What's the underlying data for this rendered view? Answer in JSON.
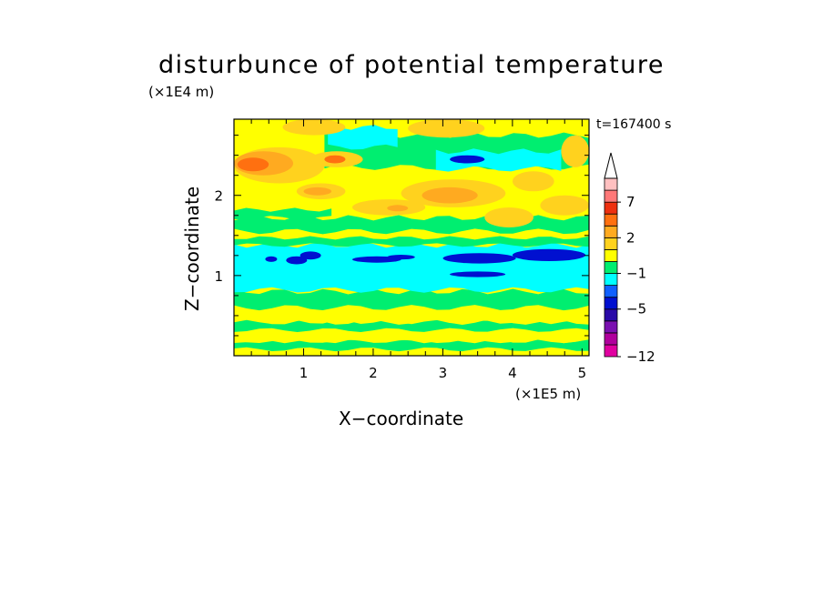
{
  "chart_data": {
    "type": "heatmap",
    "title": "disturbunce of potential temperature",
    "xlabel": "X−coordinate",
    "ylabel": "Z−coordinate",
    "x_unit": "(×1E5 m)",
    "y_unit": "(×1E4 m)",
    "time_label": "t=167400 s",
    "xlim": [
      0,
      5.1
    ],
    "ylim": [
      0,
      2.95
    ],
    "x_ticks": [
      1,
      2,
      3,
      4,
      5
    ],
    "y_ticks": [
      1,
      2
    ],
    "colorbar": {
      "labels": [
        "7",
        "2",
        "−1",
        "−5",
        "−12"
      ],
      "label_values": [
        7,
        2,
        -1,
        -5,
        -12
      ],
      "bounds": [
        -12,
        -10,
        -8,
        -6,
        -5,
        -4,
        -3,
        -1,
        0,
        1,
        2,
        3,
        5,
        7,
        9,
        11
      ],
      "colors": [
        "#e000a0",
        "#b0009c",
        "#7a10b0",
        "#2a0aa8",
        "#0010d0",
        "#1060ff",
        "#00ffff",
        "#00ee70",
        "#ffff00",
        "#ffd21e",
        "#ffaa20",
        "#ff7010",
        "#ee3010",
        "#ff7878",
        "#ffc0c0"
      ],
      "extend_top": true,
      "extend_top_color": "#ffffff"
    },
    "background_color": "#ffff00",
    "field_regions": [
      {
        "level": 0.5,
        "shape": "band",
        "x": [
          0,
          5.1
        ],
        "y": [
          0,
          0.07
        ]
      },
      {
        "level": -0.5,
        "shape": "band",
        "x": [
          0,
          5.1
        ],
        "y": [
          0.08,
          0.18
        ]
      },
      {
        "level": 0.5,
        "shape": "band",
        "x": [
          0,
          5.1
        ],
        "y": [
          0.18,
          0.27
        ]
      },
      {
        "level": -0.5,
        "shape": "band",
        "x": [
          0,
          5.1
        ],
        "y": [
          0.32,
          0.42
        ]
      },
      {
        "level": 0.5,
        "shape": "band",
        "x": [
          0,
          5.1
        ],
        "y": [
          0.42,
          0.58
        ]
      },
      {
        "level": -0.5,
        "shape": "band",
        "x": [
          0,
          5.1
        ],
        "y": [
          0.6,
          0.8
        ]
      },
      {
        "level": -2,
        "shape": "band",
        "x": [
          0,
          5.1
        ],
        "y": [
          0.82,
          1.38
        ]
      },
      {
        "level": -0.5,
        "shape": "band",
        "x": [
          0,
          5.1
        ],
        "y": [
          1.38,
          1.47
        ]
      },
      {
        "level": -0.5,
        "shape": "band",
        "x": [
          0,
          5.1
        ],
        "y": [
          1.55,
          1.72
        ]
      },
      {
        "level": -0.5,
        "shape": "band",
        "x": [
          0,
          1.4
        ],
        "y": [
          1.72,
          1.82
        ]
      },
      {
        "level": -0.5,
        "shape": "band",
        "x": [
          1.3,
          5.1
        ],
        "y": [
          2.35,
          2.75
        ]
      },
      {
        "level": -2,
        "shape": "band",
        "x": [
          1.35,
          2.35
        ],
        "y": [
          2.6,
          2.85
        ]
      },
      {
        "level": -2,
        "shape": "band",
        "x": [
          2.9,
          4.7
        ],
        "y": [
          2.33,
          2.55
        ]
      },
      {
        "level": 1.5,
        "shape": "blob",
        "x": [
          0,
          1.3
        ],
        "y": [
          2.15,
          2.6
        ]
      },
      {
        "level": 2.5,
        "shape": "blob",
        "x": [
          0,
          0.85
        ],
        "y": [
          2.25,
          2.55
        ]
      },
      {
        "level": 4,
        "shape": "blob",
        "x": [
          0.05,
          0.5
        ],
        "y": [
          2.3,
          2.47
        ]
      },
      {
        "level": 1.5,
        "shape": "blob",
        "x": [
          1.1,
          1.85
        ],
        "y": [
          2.35,
          2.55
        ]
      },
      {
        "level": 4,
        "shape": "blob",
        "x": [
          1.3,
          1.6
        ],
        "y": [
          2.4,
          2.5
        ]
      },
      {
        "level": 1.5,
        "shape": "blob",
        "x": [
          0.9,
          1.6
        ],
        "y": [
          1.95,
          2.15
        ]
      },
      {
        "level": 2.5,
        "shape": "blob",
        "x": [
          1.0,
          1.4
        ],
        "y": [
          2.0,
          2.1
        ]
      },
      {
        "level": 1.5,
        "shape": "blob",
        "x": [
          1.7,
          2.75
        ],
        "y": [
          1.75,
          1.95
        ]
      },
      {
        "level": 2.5,
        "shape": "blob",
        "x": [
          2.2,
          2.5
        ],
        "y": [
          1.8,
          1.88
        ]
      },
      {
        "level": 1.5,
        "shape": "blob",
        "x": [
          2.4,
          3.9
        ],
        "y": [
          1.85,
          2.2
        ]
      },
      {
        "level": 2.5,
        "shape": "blob",
        "x": [
          2.7,
          3.5
        ],
        "y": [
          1.9,
          2.1
        ]
      },
      {
        "level": 1.5,
        "shape": "blob",
        "x": [
          3.6,
          4.3
        ],
        "y": [
          1.6,
          1.85
        ]
      },
      {
        "level": 1.5,
        "shape": "blob",
        "x": [
          4.4,
          5.1
        ],
        "y": [
          1.75,
          2.0
        ]
      },
      {
        "level": 1.5,
        "shape": "blob",
        "x": [
          0.7,
          1.6
        ],
        "y": [
          2.75,
          2.95
        ]
      },
      {
        "level": 1.5,
        "shape": "blob",
        "x": [
          2.5,
          3.6
        ],
        "y": [
          2.72,
          2.95
        ]
      },
      {
        "level": 1.5,
        "shape": "blob",
        "x": [
          4.7,
          5.1
        ],
        "y": [
          2.35,
          2.75
        ]
      },
      {
        "level": 1.5,
        "shape": "blob",
        "x": [
          4.0,
          4.6
        ],
        "y": [
          2.05,
          2.3
        ]
      },
      {
        "level": -4.5,
        "shape": "blob",
        "x": [
          3.1,
          3.6
        ],
        "y": [
          2.4,
          2.5
        ]
      },
      {
        "level": -4.5,
        "shape": "blob",
        "x": [
          3.0,
          4.05
        ],
        "y": [
          1.15,
          1.28
        ]
      },
      {
        "level": -4.5,
        "shape": "blob",
        "x": [
          4.0,
          5.05
        ],
        "y": [
          1.18,
          1.33
        ]
      },
      {
        "level": -4.5,
        "shape": "blob",
        "x": [
          1.7,
          2.4
        ],
        "y": [
          1.16,
          1.24
        ]
      },
      {
        "level": -4.5,
        "shape": "blob",
        "x": [
          3.1,
          3.9
        ],
        "y": [
          0.98,
          1.05
        ]
      },
      {
        "level": -4.5,
        "shape": "blob",
        "x": [
          0.75,
          1.05
        ],
        "y": [
          1.14,
          1.24
        ]
      },
      {
        "level": -4.5,
        "shape": "blob",
        "x": [
          0.95,
          1.25
        ],
        "y": [
          1.2,
          1.3
        ]
      },
      {
        "level": -4.5,
        "shape": "blob",
        "x": [
          0.45,
          0.62
        ],
        "y": [
          1.17,
          1.24
        ]
      },
      {
        "level": -4.5,
        "shape": "blob",
        "x": [
          2.2,
          2.6
        ],
        "y": [
          1.2,
          1.26
        ]
      }
    ]
  }
}
